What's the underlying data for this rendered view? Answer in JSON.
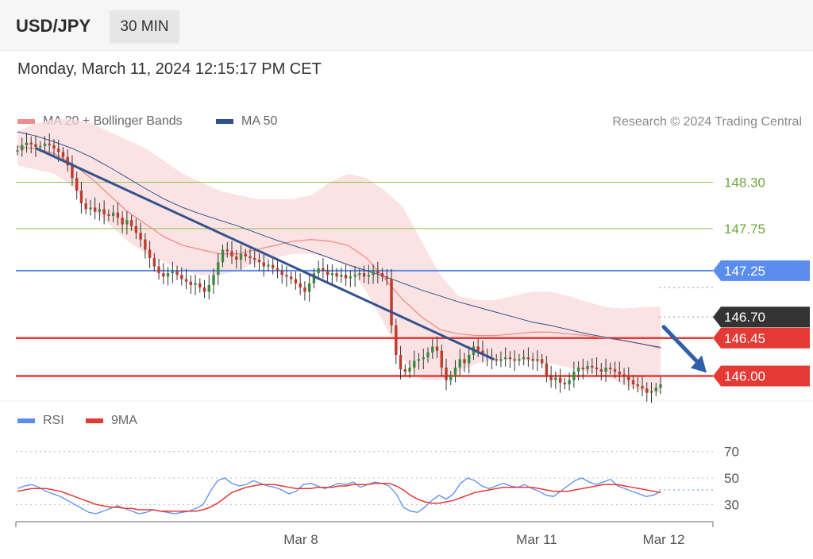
{
  "header": {
    "symbol": "USD/JPY",
    "timeframe": "30 MIN",
    "datetime": "Monday, March 11, 2024 12:15:17 PM CET"
  },
  "legend": {
    "ma20": "MA 20 + Bollinger Bands",
    "ma50": "MA 50",
    "copyright": "Research © 2024 Trading Central"
  },
  "rsi_legend": {
    "rsi": "RSI",
    "ma9": "9MA"
  },
  "colors": {
    "ma20": "#f28b8b",
    "ma50": "#2e4f91",
    "bands": "#fadada",
    "trendline": "#34528f",
    "rsi": "#5b8def",
    "rsi_ma": "#e53935",
    "support": "#e53935",
    "resistance_green": "#8bc34a",
    "pivot_blue": "#5b8def",
    "current": "#333333"
  },
  "chart_data": [
    {
      "type": "candlestick",
      "title": "USD/JPY 30 MIN",
      "ylim": [
        145.75,
        149.05
      ],
      "x_ticks": [
        "Mar 8",
        "Mar 11",
        "Mar 12"
      ],
      "levels": [
        {
          "value": 148.3,
          "label": "148.30",
          "style": "resistance"
        },
        {
          "value": 147.75,
          "label": "147.75",
          "style": "resistance"
        },
        {
          "value": 147.25,
          "label": "147.25",
          "style": "pivot"
        },
        {
          "value": 146.7,
          "label": "146.70",
          "style": "current"
        },
        {
          "value": 146.45,
          "label": "146.45",
          "style": "support"
        },
        {
          "value": 146.0,
          "label": "146.00",
          "style": "support"
        }
      ],
      "close": [
        148.68,
        148.74,
        148.77,
        148.75,
        148.72,
        148.73,
        148.76,
        148.74,
        148.7,
        148.66,
        148.6,
        148.5,
        148.35,
        148.2,
        148.05,
        147.98,
        148.0,
        147.95,
        147.98,
        147.92,
        147.9,
        147.94,
        147.88,
        147.8,
        147.85,
        147.78,
        147.7,
        147.62,
        147.5,
        147.4,
        147.3,
        147.22,
        147.18,
        147.22,
        147.25,
        147.2,
        147.15,
        147.12,
        147.08,
        147.1,
        147.05,
        147.0,
        147.08,
        147.2,
        147.35,
        147.5,
        147.48,
        147.42,
        147.38,
        147.45,
        147.42,
        147.4,
        147.38,
        147.35,
        147.3,
        147.32,
        147.28,
        147.25,
        147.2,
        147.18,
        147.15,
        147.1,
        147.05,
        147.0,
        147.1,
        147.22,
        147.28,
        147.25,
        147.2,
        147.22,
        147.18,
        147.2,
        147.16,
        147.18,
        147.2,
        147.22,
        147.18,
        147.2,
        147.25,
        147.22,
        147.18,
        147.15,
        146.6,
        146.25,
        146.08,
        146.05,
        146.1,
        146.18,
        146.2,
        146.22,
        146.28,
        146.35,
        146.3,
        146.1,
        145.95,
        146.0,
        146.1,
        146.2,
        146.15,
        146.25,
        146.35,
        146.3,
        146.25,
        146.22,
        146.2,
        146.18,
        146.2,
        146.22,
        146.2,
        146.18,
        146.2,
        146.22,
        146.2,
        146.18,
        146.2,
        146.15,
        146.0,
        145.95,
        145.98,
        145.92,
        145.9,
        145.95,
        146.05,
        146.1,
        146.08,
        146.12,
        146.1,
        146.08,
        146.05,
        146.1,
        146.08,
        146.05,
        146.02,
        146.0,
        145.95,
        145.9,
        145.88,
        145.85,
        145.8,
        145.82,
        145.86,
        145.9
      ],
      "ma20_band_upper": [
        148.9,
        149.0,
        149.05,
        149.05,
        149.0,
        148.9,
        148.8,
        148.7,
        148.55,
        148.4,
        148.3,
        148.2,
        148.15,
        148.1,
        148.1,
        148.1,
        148.15,
        148.3,
        148.4,
        148.35,
        148.2,
        148.0,
        147.6,
        147.2,
        146.95,
        146.9,
        146.9,
        146.95,
        147.0,
        147.0,
        146.95,
        146.88,
        146.82,
        146.8,
        146.82,
        146.82
      ],
      "ma20_band_lower": [
        148.5,
        148.45,
        148.4,
        148.25,
        148.0,
        147.8,
        147.6,
        147.45,
        147.35,
        147.25,
        147.2,
        147.2,
        147.25,
        147.35,
        147.4,
        147.45,
        147.45,
        147.4,
        147.3,
        147.0,
        146.6,
        146.2,
        145.95,
        145.95,
        146.05,
        146.15,
        146.2,
        146.2,
        146.18,
        146.15,
        146.1,
        146.05,
        146.0,
        145.9,
        145.82,
        145.8
      ],
      "ma20": [
        148.72,
        148.7,
        148.64,
        148.52,
        148.35,
        148.15,
        147.95,
        147.8,
        147.65,
        147.55,
        147.5,
        147.45,
        147.45,
        147.5,
        147.55,
        147.6,
        147.62,
        147.6,
        147.55,
        147.4,
        147.15,
        146.9,
        146.7,
        146.55,
        146.5,
        146.48,
        146.48,
        146.5,
        146.52,
        146.52,
        146.5,
        146.48,
        146.45,
        146.42,
        146.38,
        146.33
      ],
      "ma50": [
        148.9,
        148.85,
        148.78,
        148.7,
        148.6,
        148.48,
        148.35,
        148.22,
        148.1,
        148.0,
        147.92,
        147.85,
        147.78,
        147.7,
        147.62,
        147.55,
        147.48,
        147.4,
        147.32,
        147.25,
        147.18,
        147.1,
        147.02,
        146.95,
        146.88,
        146.82,
        146.76,
        146.7,
        146.64,
        146.6,
        146.55,
        146.5,
        146.46,
        146.42,
        146.38,
        146.34
      ],
      "trendline": [
        [
          148.7,
          0.03
        ],
        [
          146.2,
          0.74
        ]
      ],
      "forecast_arrow": {
        "from": 146.45,
        "to": 146.0
      }
    },
    {
      "type": "line",
      "title": "RSI",
      "ylim": [
        20,
        80
      ],
      "y_ticks": [
        70,
        50,
        30
      ],
      "series": [
        {
          "name": "RSI",
          "values": [
            42,
            44,
            45,
            43,
            40,
            38,
            36,
            33,
            30,
            27,
            24,
            23,
            25,
            27,
            29,
            27,
            25,
            23,
            24,
            26,
            25,
            24,
            23,
            24,
            25,
            27,
            30,
            40,
            48,
            50,
            46,
            44,
            45,
            48,
            46,
            44,
            43,
            41,
            38,
            40,
            45,
            46,
            44,
            42,
            44,
            46,
            45,
            47,
            43,
            45,
            47,
            46,
            44,
            38,
            28,
            25,
            24,
            28,
            33,
            37,
            34,
            38,
            46,
            50,
            48,
            44,
            42,
            44,
            46,
            44,
            43,
            45,
            42,
            40,
            37,
            36,
            40,
            44,
            48,
            50,
            47,
            45,
            47,
            49,
            44,
            42,
            40,
            38,
            36,
            37,
            40
          ]
        },
        {
          "name": "9MA",
          "values": [
            40,
            41,
            42,
            42,
            42,
            41,
            40,
            38,
            36,
            34,
            32,
            30,
            29,
            28,
            28,
            27,
            27,
            26,
            26,
            26,
            25,
            25,
            25,
            25,
            25,
            25,
            26,
            28,
            31,
            35,
            39,
            41,
            43,
            44,
            45,
            45,
            45,
            44,
            43,
            42,
            42,
            42,
            43,
            43,
            43,
            44,
            44,
            45,
            45,
            45,
            46,
            46,
            46,
            44,
            41,
            37,
            34,
            32,
            31,
            31,
            32,
            33,
            35,
            37,
            39,
            40,
            41,
            42,
            43,
            43,
            43,
            43,
            43,
            42,
            41,
            40,
            40,
            40,
            41,
            42,
            43,
            44,
            45,
            45,
            45,
            44,
            43,
            42,
            41,
            40,
            39
          ]
        }
      ]
    }
  ]
}
